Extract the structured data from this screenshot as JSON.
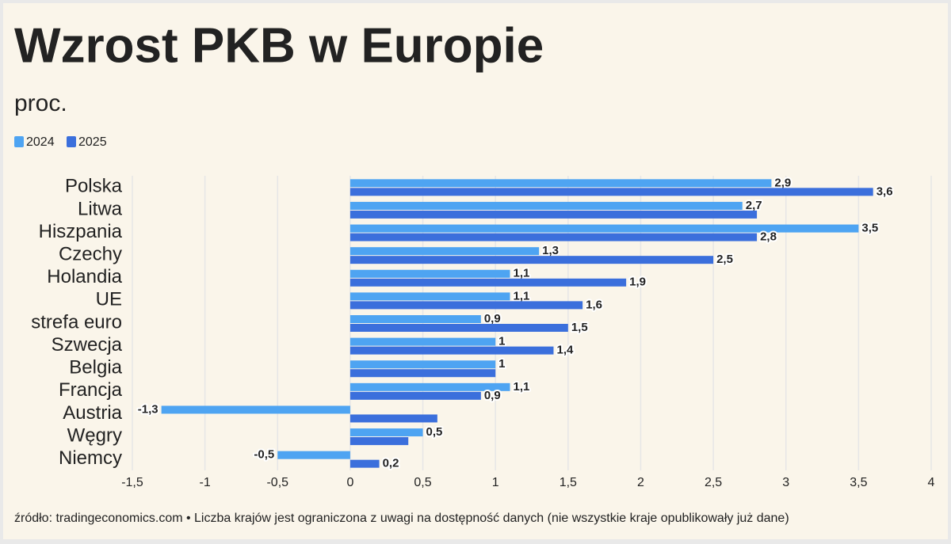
{
  "chart_data": {
    "type": "hbar",
    "title": "Wzrost PKB w Europie",
    "subtitle": "proc.",
    "source": "źródło: tradingeconomics.com • Liczba krajów jest ograniczona z uwagi na dostępność danych (nie wszystkie kraje opublikowały już dane)",
    "categories": [
      "Polska",
      "Litwa",
      "Hiszpania",
      "Czechy",
      "Holandia",
      "UE",
      "strefa euro",
      "Szwecja",
      "Belgia",
      "Francja",
      "Austria",
      "Węgry",
      "Niemcy"
    ],
    "series": [
      {
        "name": "2024",
        "color": "#4ea4f2",
        "values": [
          2.9,
          2.7,
          3.5,
          1.3,
          1.1,
          1.1,
          0.9,
          1,
          1,
          1.1,
          -1.3,
          0.5,
          -0.5
        ],
        "value_labels": [
          "2,9",
          "2,7",
          "3,5",
          "1,3",
          "1,1",
          "1,1",
          "0,9",
          "1",
          "1",
          "1,1",
          "-1,3",
          "0,5",
          "-0,5"
        ]
      },
      {
        "name": "2025",
        "color": "#3b6fdc",
        "values": [
          3.6,
          2.8,
          2.8,
          2.5,
          1.9,
          1.6,
          1.5,
          1.4,
          1,
          0.9,
          0.6,
          0.4,
          0.2
        ],
        "value_labels": [
          "3,6",
          null,
          "2,8",
          "2,5",
          "1,9",
          "1,6",
          "1,5",
          "1,4",
          null,
          "0,9",
          null,
          null,
          "0,2"
        ]
      }
    ],
    "xlim": [
      -1.5,
      4
    ],
    "xticks": [
      {
        "value": -1.5,
        "label": "-1,5"
      },
      -1,
      {
        "value": -0.5,
        "label": "-0,5"
      },
      0,
      {
        "value": 0.5,
        "label": "0,5"
      },
      1,
      {
        "value": 1.5,
        "label": "1,5"
      },
      2,
      {
        "value": 2.5,
        "label": "2,5"
      },
      3,
      {
        "value": 3.5,
        "label": "3,5"
      },
      4
    ],
    "grid": true,
    "legend": "top-left"
  }
}
